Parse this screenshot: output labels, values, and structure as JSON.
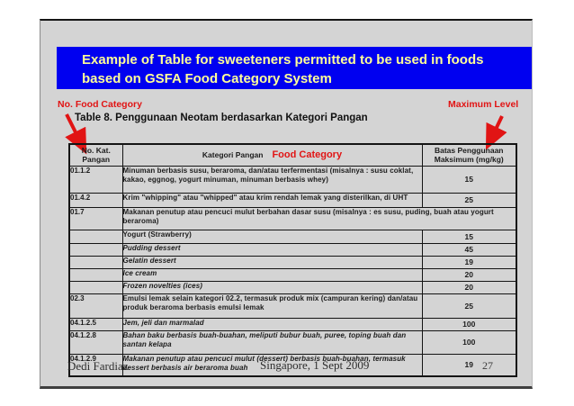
{
  "slide": {
    "title_line1": "Example of Table for sweeteners permitted to be used in foods",
    "title_line2": "based on GSFA Food Category System",
    "annotation_left": "No. Food Category",
    "annotation_right": "Maximum Level",
    "table_caption": "Table 8. Penggunaan Neotam berdasarkan Kategori Pangan",
    "footer": {
      "author": "Dedi Fardiaz",
      "event": "Singapore, 1 Sept 2009",
      "page_number": "27"
    }
  },
  "table": {
    "header_col1_line1": "No. Kat.",
    "header_col1_line2": "Pangan",
    "header_col2": "Kategori Pangan",
    "header_col2_red": "Food Category",
    "header_col3_line1": "Batas Penggunaan",
    "header_col3_line2": "Maksimum (mg/kg)",
    "rows": [
      {
        "code": "01.1.2",
        "category": "Minuman berbasis susu, beraroma, dan/atau terfermentasi (misalnya : susu coklat, kakao, eggnog, yogurt minuman, minuman berbasis whey)",
        "max": "15",
        "italic": false,
        "span": false
      },
      {
        "code": "01.4.2",
        "category": "Krim \"whipping\" atau \"whipped\" atau krim rendah lemak yang disterilkan, di UHT",
        "max": "25",
        "italic": false,
        "span": false
      },
      {
        "code": "01.7",
        "category": "Makanan penutup atau pencuci mulut berbahan dasar susu (misalnya : es susu, puding, buah atau yogurt beraroma)",
        "max": "",
        "italic": false,
        "span": true
      },
      {
        "code": "",
        "category": "Yogurt (Strawberry)",
        "max": "15",
        "italic": false,
        "span": false
      },
      {
        "code": "",
        "category": "Pudding dessert",
        "max": "45",
        "italic": true,
        "span": false
      },
      {
        "code": "",
        "category": "Gelatin dessert",
        "max": "19",
        "italic": true,
        "span": false
      },
      {
        "code": "",
        "category": "Ice cream",
        "max": "20",
        "italic": true,
        "span": false
      },
      {
        "code": "",
        "category": "Frozen novelties (ices)",
        "max": "20",
        "italic": true,
        "span": false
      },
      {
        "code": "02.3",
        "category": "Emulsi lemak selain kategori 02.2, termasuk produk mix (campuran kering) dan/atau produk beraroma berbasis emulsi lemak",
        "max": "25",
        "italic": false,
        "span": false
      },
      {
        "code": "04.1.2.5",
        "category": "Jem, jeli dan marmalad",
        "max": "100",
        "italic": true,
        "span": false
      },
      {
        "code": "04.1.2.8",
        "category": "Bahan baku berbasis buah-buahan, meliputi bubur buah, puree, toping buah dan santan kelapa",
        "max": "100",
        "italic": true,
        "span": false
      },
      {
        "code": "04.1.2.9",
        "category": "Makanan penutup atau pencuci mulut (dessert) berbasis buah-buahan, termasuk dessert berbasis air beraroma buah",
        "max": "19",
        "italic": true,
        "span": false
      }
    ]
  },
  "colors": {
    "title_bar_bg": "#0000F0",
    "title_text": "#FFFF99",
    "accent_red": "#E11414",
    "slide_bg": "#D4D4D4"
  }
}
